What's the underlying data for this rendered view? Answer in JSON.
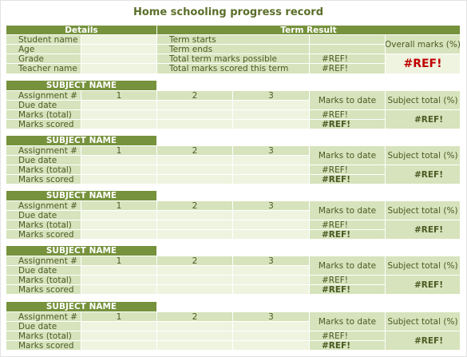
{
  "title": "Home schooling progress record",
  "top": {
    "details_header": "Details",
    "term_header": "Term Result",
    "labels": [
      "Student name",
      "Age",
      "Grade",
      "Teacher name"
    ],
    "term_labels": [
      "Term starts",
      "Term ends",
      "Total term marks possible",
      "Total marks scored this term"
    ],
    "term_values": [
      "",
      "",
      "#REF!",
      "#REF!"
    ],
    "overall_label": "Overall marks (%)",
    "overall_value": "#REF!"
  },
  "subjects": [
    {
      "name": "SUBJECT  NAME",
      "row_labels": [
        "Assignment #",
        "Due date",
        "Marks (total)",
        "Marks scored"
      ],
      "assignments": [
        "1",
        "2",
        "3"
      ],
      "marks_to_date_label": "Marks to date",
      "subject_total_label": "Subject total (%)",
      "marks_total": "#REF!",
      "marks_scored": "#REF!",
      "subject_total": "#REF!"
    },
    {
      "name": "SUBJECT  NAME",
      "row_labels": [
        "Assignment #",
        "Due date",
        "Marks (total)",
        "Marks scored"
      ],
      "assignments": [
        "1",
        "2",
        "3"
      ],
      "marks_to_date_label": "Marks to date",
      "subject_total_label": "Subject total (%)",
      "marks_total": "#REF!",
      "marks_scored": "#REF!",
      "subject_total": "#REF!"
    },
    {
      "name": "SUBJECT  NAME",
      "row_labels": [
        "Assignment #",
        "Due date",
        "Marks (total)",
        "Marks scored"
      ],
      "assignments": [
        "1",
        "2",
        "3"
      ],
      "marks_to_date_label": "Marks to date",
      "subject_total_label": "Subject total (%)",
      "marks_total": "#REF!",
      "marks_scored": "#REF!",
      "subject_total": "#REF!"
    },
    {
      "name": "SUBJECT  NAME",
      "row_labels": [
        "Assignment #",
        "Due date",
        "Marks (total)",
        "Marks scored"
      ],
      "assignments": [
        "1",
        "2",
        "3"
      ],
      "marks_to_date_label": "Marks to date",
      "subject_total_label": "Subject total (%)",
      "marks_total": "#REF!",
      "marks_scored": "#REF!",
      "subject_total": "#REF!"
    },
    {
      "name": "SUBJECT  NAME",
      "row_labels": [
        "Assignment #",
        "Due date",
        "Marks (total)",
        "Marks scored"
      ],
      "assignments": [
        "1",
        "2",
        "3"
      ],
      "marks_to_date_label": "Marks to date",
      "subject_total_label": "Subject total (%)",
      "marks_total": "#REF!",
      "marks_scored": "#REF!",
      "subject_total": "#REF!"
    }
  ]
}
